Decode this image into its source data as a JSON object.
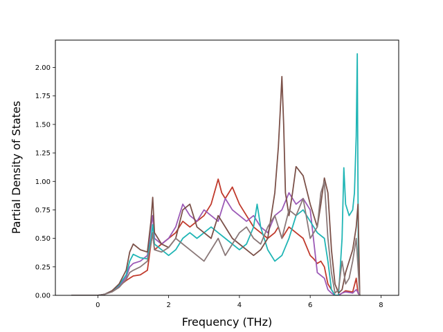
{
  "chart_data": {
    "type": "line",
    "title": "",
    "xlabel": "Frequency (THz)",
    "ylabel": "Partial Density of States",
    "xlim": [
      -1.2,
      8.5
    ],
    "ylim": [
      0,
      2.24
    ],
    "x_ticks": [
      0,
      2,
      4,
      6,
      8
    ],
    "x_tick_labels": [
      "0",
      "2",
      "4",
      "6",
      "8"
    ],
    "y_ticks": [
      0,
      0.25,
      0.5,
      0.75,
      1.0,
      1.25,
      1.5,
      1.75,
      2.0
    ],
    "y_tick_labels": [
      "0.00",
      "0.25",
      "0.50",
      "0.75",
      "1.00",
      "1.25",
      "1.50",
      "1.75",
      "2.00"
    ],
    "grid": false,
    "legend": "none",
    "series": [
      {
        "color": "#c0392b",
        "x": [
          -0.75,
          0,
          0.2,
          0.4,
          0.6,
          0.8,
          0.9,
          1.0,
          1.2,
          1.4,
          1.5,
          1.55,
          1.6,
          1.8,
          2.0,
          2.2,
          2.4,
          2.6,
          2.8,
          3.0,
          3.2,
          3.4,
          3.5,
          3.6,
          3.8,
          4.0,
          4.2,
          4.4,
          4.6,
          4.8,
          5.0,
          5.1,
          5.2,
          5.3,
          5.4,
          5.6,
          5.8,
          6.0,
          6.1,
          6.2,
          6.3,
          6.4,
          6.5,
          6.6,
          6.7,
          6.8,
          6.9,
          7.0,
          7.2,
          7.3,
          7.35,
          7.4
        ],
        "y": [
          0,
          0,
          0.01,
          0.04,
          0.08,
          0.13,
          0.15,
          0.17,
          0.18,
          0.22,
          0.45,
          0.55,
          0.4,
          0.45,
          0.5,
          0.55,
          0.65,
          0.6,
          0.65,
          0.7,
          0.8,
          1.02,
          0.9,
          0.85,
          0.95,
          0.8,
          0.7,
          0.6,
          0.55,
          0.5,
          0.55,
          0.6,
          0.5,
          0.55,
          0.6,
          0.55,
          0.5,
          0.35,
          0.32,
          0.28,
          0.3,
          0.25,
          0.1,
          0.05,
          0,
          0,
          0.02,
          0.04,
          0.03,
          0.15,
          0.02,
          0
        ]
      },
      {
        "color": "#9b59b6",
        "x": [
          -0.75,
          0,
          0.2,
          0.4,
          0.6,
          0.8,
          0.9,
          1.0,
          1.2,
          1.4,
          1.5,
          1.55,
          1.6,
          1.8,
          2.0,
          2.2,
          2.4,
          2.6,
          2.8,
          3.0,
          3.2,
          3.4,
          3.6,
          3.8,
          4.0,
          4.2,
          4.4,
          4.6,
          4.8,
          5.0,
          5.2,
          5.4,
          5.6,
          5.8,
          6.0,
          6.2,
          6.4,
          6.5,
          6.6,
          6.7,
          6.8,
          6.9,
          7.0,
          7.2,
          7.3,
          7.4
        ],
        "y": [
          0,
          0,
          0.01,
          0.04,
          0.08,
          0.16,
          0.25,
          0.28,
          0.3,
          0.35,
          0.6,
          0.7,
          0.5,
          0.45,
          0.5,
          0.6,
          0.8,
          0.7,
          0.65,
          0.75,
          0.7,
          0.65,
          0.85,
          0.75,
          0.7,
          0.65,
          0.7,
          0.6,
          0.55,
          0.7,
          0.75,
          0.9,
          0.8,
          0.85,
          0.75,
          0.2,
          0.15,
          0.05,
          0.02,
          0,
          0,
          0.02,
          0.03,
          0.02,
          0.05,
          0
        ]
      },
      {
        "color": "#1fb5b5",
        "x": [
          -0.75,
          0,
          0.2,
          0.4,
          0.6,
          0.8,
          0.9,
          1.0,
          1.2,
          1.4,
          1.5,
          1.55,
          1.6,
          1.8,
          2.0,
          2.2,
          2.4,
          2.6,
          2.8,
          3.0,
          3.2,
          3.4,
          3.6,
          3.8,
          4.0,
          4.2,
          4.4,
          4.5,
          4.6,
          4.8,
          5.0,
          5.2,
          5.4,
          5.6,
          5.8,
          6.0,
          6.2,
          6.4,
          6.5,
          6.6,
          6.7,
          6.8,
          6.9,
          6.95,
          7.0,
          7.1,
          7.2,
          7.25,
          7.3,
          7.33,
          7.36,
          7.4
        ],
        "y": [
          0,
          0,
          0.01,
          0.04,
          0.09,
          0.18,
          0.3,
          0.36,
          0.33,
          0.32,
          0.5,
          0.62,
          0.45,
          0.4,
          0.35,
          0.4,
          0.5,
          0.55,
          0.5,
          0.55,
          0.6,
          0.55,
          0.5,
          0.45,
          0.4,
          0.45,
          0.6,
          0.8,
          0.6,
          0.4,
          0.3,
          0.35,
          0.5,
          0.7,
          0.75,
          0.65,
          0.55,
          0.5,
          0.3,
          0.05,
          0,
          0,
          0.5,
          1.12,
          0.8,
          0.7,
          0.75,
          0.9,
          1.4,
          2.12,
          0.3,
          0
        ]
      },
      {
        "color": "#7b5048",
        "x": [
          -0.75,
          0,
          0.2,
          0.4,
          0.6,
          0.8,
          0.9,
          1.0,
          1.2,
          1.4,
          1.5,
          1.55,
          1.6,
          1.8,
          2.0,
          2.2,
          2.4,
          2.6,
          2.8,
          3.0,
          3.2,
          3.4,
          3.6,
          3.8,
          4.0,
          4.2,
          4.4,
          4.6,
          4.8,
          5.0,
          5.1,
          5.15,
          5.2,
          5.25,
          5.3,
          5.4,
          5.5,
          5.6,
          5.8,
          6.0,
          6.2,
          6.3,
          6.4,
          6.5,
          6.6,
          6.7,
          6.8,
          6.9,
          7.0,
          7.1,
          7.2,
          7.3,
          7.35,
          7.4
        ],
        "y": [
          0,
          0,
          0.01,
          0.04,
          0.1,
          0.22,
          0.38,
          0.45,
          0.4,
          0.38,
          0.65,
          0.86,
          0.55,
          0.45,
          0.42,
          0.5,
          0.75,
          0.8,
          0.6,
          0.55,
          0.5,
          0.7,
          0.6,
          0.5,
          0.45,
          0.4,
          0.35,
          0.4,
          0.5,
          0.9,
          1.3,
          1.6,
          1.92,
          1.5,
          0.9,
          0.7,
          0.9,
          1.13,
          1.05,
          0.8,
          0.6,
          0.8,
          1.03,
          0.9,
          0.4,
          0.1,
          0.02,
          0.05,
          0.2,
          0.3,
          0.4,
          0.6,
          0.8,
          0
        ]
      },
      {
        "color": "#8a7878",
        "x": [
          -0.75,
          0,
          0.2,
          0.4,
          0.6,
          0.8,
          0.9,
          1.0,
          1.2,
          1.4,
          1.5,
          1.55,
          1.6,
          1.8,
          2.0,
          2.2,
          2.4,
          2.6,
          2.8,
          3.0,
          3.2,
          3.4,
          3.6,
          3.8,
          4.0,
          4.2,
          4.4,
          4.6,
          4.8,
          5.0,
          5.2,
          5.4,
          5.6,
          5.8,
          6.0,
          6.2,
          6.3,
          6.4,
          6.5,
          6.6,
          6.7,
          6.8,
          6.9,
          7.0,
          7.1,
          7.2,
          7.3,
          7.4
        ],
        "y": [
          0,
          0,
          0.01,
          0.03,
          0.07,
          0.14,
          0.2,
          0.22,
          0.25,
          0.3,
          0.45,
          0.55,
          0.4,
          0.38,
          0.42,
          0.5,
          0.45,
          0.4,
          0.35,
          0.3,
          0.4,
          0.5,
          0.35,
          0.45,
          0.55,
          0.6,
          0.5,
          0.45,
          0.6,
          0.7,
          0.5,
          0.75,
          0.7,
          0.85,
          0.5,
          0.6,
          0.9,
          1.0,
          0.5,
          0.2,
          0.02,
          0.05,
          0.3,
          0.1,
          0.15,
          0.3,
          0.5,
          0
        ]
      }
    ]
  }
}
